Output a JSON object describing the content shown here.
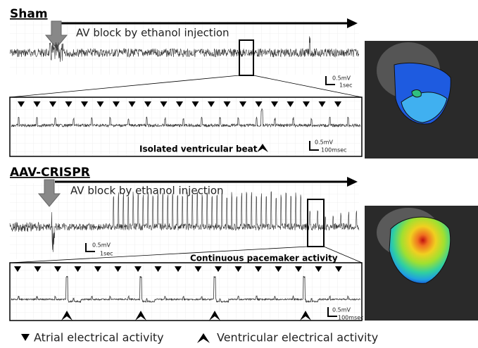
{
  "sham": {
    "title": "Sham",
    "event": "AV block by ethanol injection",
    "scale_v": "0.5mV",
    "scale_t": "1sec",
    "inset": {
      "note": "Isolated ventricular beat",
      "scale_v": "0.5mV",
      "scale_t": "100msec"
    }
  },
  "crispr": {
    "title": "AAV-CRISPR",
    "event": "AV block by ethanol injection",
    "scale_v": "0.5mV",
    "scale_t": "1sec",
    "inset": {
      "note": "Continuous pacemaker activity",
      "scale_v": "0.5mV",
      "scale_t": "100msec"
    }
  },
  "legend": {
    "atrial": "Atrial electrical activity",
    "ventricular": "Ventricular electrical activity"
  }
}
